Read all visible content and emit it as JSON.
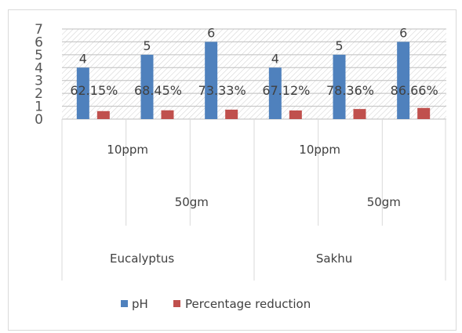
{
  "chart_data": {
    "type": "bar",
    "title": "",
    "xlabel": "",
    "ylabel": "",
    "ylim": [
      0,
      7
    ],
    "y_ticks": [
      "0",
      "1",
      "2",
      "3",
      "4",
      "5",
      "6",
      "7"
    ],
    "categories": [
      {
        "label": "10ppm 50gm Eucalyptus",
        "dose_label": "",
        "weight_label": "",
        "species_label": "",
        "percentage_label": "62.15%"
      },
      {
        "label": "10ppm 50gm Eucalyptus",
        "dose_label": "10ppm",
        "weight_label": "",
        "species_label": "",
        "percentage_label": "68.45%"
      },
      {
        "label": "10ppm 50gm Eucalyptus",
        "dose_label": "",
        "weight_label": "50gm",
        "species_label": "Eucalyptus",
        "percentage_label": "73.33%"
      },
      {
        "label": "10ppm 50gm Sakhu",
        "dose_label": "",
        "weight_label": "",
        "species_label": "",
        "percentage_label": "67.12%"
      },
      {
        "label": "10ppm 50gm Sakhu",
        "dose_label": "10ppm",
        "weight_label": "",
        "species_label": "",
        "percentage_label": "78.36%"
      },
      {
        "label": "10ppm 50gm Sakhu",
        "dose_label": "",
        "weight_label": "50gm",
        "species_label": "Sakhu",
        "percentage_label": "86.66%"
      }
    ],
    "series": [
      {
        "name": "pH",
        "color": "#4f81bd",
        "values": [
          4,
          5,
          6,
          4,
          5,
          6
        ],
        "labels": [
          "4",
          "5",
          "6",
          "4",
          "5",
          "6"
        ]
      },
      {
        "name": "Percentage reduction",
        "color": "#c0504d",
        "values": [
          0.6215,
          0.6845,
          0.7333,
          0.6712,
          0.7836,
          0.8666
        ]
      }
    ],
    "grid": true,
    "legend_position": "bottom"
  }
}
